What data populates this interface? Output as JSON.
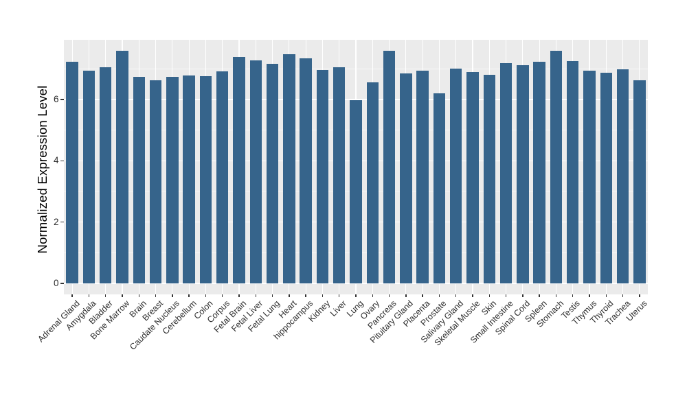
{
  "chart_data": {
    "type": "bar",
    "title": "",
    "xlabel": "",
    "ylabel": "Normalized Expression Level",
    "categories": [
      "Adrenal Gland",
      "Amygdala",
      "Bladder",
      "Bone Marrow",
      "Brain",
      "Breast",
      "Caudate Nucleus",
      "Cerebellum",
      "Colon",
      "Corpus",
      "Fetal Brain",
      "Fetal Liver",
      "Fetal Lung",
      "Heart",
      "hippocampus",
      "Kidney",
      "Liver",
      "Lung",
      "Ovary",
      "Pancreas",
      "Pituitary Gland",
      "Placenta",
      "Prostate",
      "Salivary Gland",
      "Skeletal Muscle",
      "Skin",
      "Small Intestine",
      "Spinal Cord",
      "Spleen",
      "Stomach",
      "Testis",
      "Thymus",
      "Thyroid",
      "Trachea",
      "Uterus"
    ],
    "values": [
      7.23,
      6.95,
      7.05,
      7.58,
      6.74,
      6.63,
      6.73,
      6.79,
      6.77,
      6.92,
      7.39,
      7.28,
      7.16,
      7.48,
      7.34,
      6.96,
      7.06,
      5.98,
      6.55,
      7.59,
      6.84,
      6.95,
      6.2,
      7.01,
      6.9,
      6.8,
      7.18,
      7.12,
      7.24,
      7.59,
      7.25,
      6.95,
      6.87,
      6.98,
      6.62
    ],
    "yticks": [
      0,
      2,
      4,
      6
    ],
    "yticks_minor": [
      1,
      3,
      5,
      7
    ],
    "ylim": [
      0,
      7.95
    ],
    "x_tick_rotation_deg": 45,
    "grid": "white major+minor horizontal, white major vertical at category centers",
    "legend": "none",
    "colors": {
      "bar_fill": "#36648B",
      "panel_bg": "#EBEBEB",
      "grid_line": "#FFFFFF",
      "tick_mark": "#333333",
      "tick_text": "#2E2E2E",
      "axis_title_text": "#000000"
    }
  }
}
